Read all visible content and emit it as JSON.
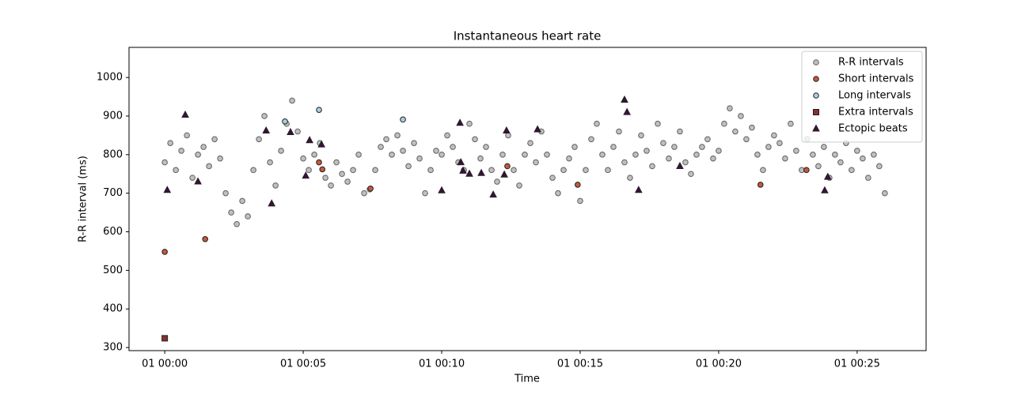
{
  "chart_data": {
    "type": "scatter",
    "title": "Instantaneous heart rate",
    "x_label": "Time",
    "y_label": "R-R interval (ms)",
    "xlim": [
      -1.29,
      27.49
    ],
    "ylim": [
      292,
      1078
    ],
    "xticks": [
      {
        "value": 0,
        "label": "01 00:00"
      },
      {
        "value": 5,
        "label": "01 00:05"
      },
      {
        "value": 10,
        "label": "01 00:10"
      },
      {
        "value": 15,
        "label": "01 00:15"
      },
      {
        "value": 20,
        "label": "01 00:20"
      },
      {
        "value": 25,
        "label": "01 00:25"
      }
    ],
    "yticks": [
      300,
      400,
      500,
      600,
      700,
      800,
      900,
      1000
    ],
    "legend": "upper right",
    "series": [
      {
        "name": "R-R intervals",
        "color": "#c0c0c0",
        "edge": "#606060",
        "marker": "circle",
        "x": [
          0,
          0.2,
          0.4,
          0.6,
          0.8,
          1.0,
          1.2,
          1.4,
          1.6,
          1.8,
          2.0,
          2.2,
          2.4,
          2.6,
          2.8,
          3.0,
          3.2,
          3.4,
          3.6,
          3.8,
          4.0,
          4.2,
          4.4,
          4.6,
          4.8,
          5.0,
          5.2,
          5.4,
          5.6,
          5.8,
          6.0,
          6.2,
          6.4,
          6.6,
          6.8,
          7.0,
          7.2,
          7.4,
          7.6,
          7.8,
          8.0,
          8.2,
          8.4,
          8.6,
          8.8,
          9.0,
          9.2,
          9.4,
          9.6,
          9.8,
          10.0,
          10.2,
          10.4,
          10.6,
          10.8,
          11.0,
          11.2,
          11.4,
          11.6,
          11.8,
          12.0,
          12.2,
          12.4,
          12.6,
          12.8,
          13.0,
          13.2,
          13.4,
          13.6,
          13.8,
          14.0,
          14.2,
          14.4,
          14.6,
          14.8,
          15.0,
          15.2,
          15.4,
          15.6,
          15.8,
          16.0,
          16.2,
          16.4,
          16.6,
          16.8,
          17.0,
          17.2,
          17.4,
          17.6,
          17.8,
          18.0,
          18.2,
          18.4,
          18.6,
          18.8,
          19.0,
          19.2,
          19.4,
          19.6,
          19.8,
          20.0,
          20.2,
          20.4,
          20.6,
          20.8,
          21.0,
          21.2,
          21.4,
          21.6,
          21.8,
          22.0,
          22.2,
          22.4,
          22.6,
          22.8,
          23.0,
          23.2,
          23.4,
          23.6,
          23.8,
          24.0,
          24.2,
          24.4,
          24.6,
          24.8,
          25.0,
          25.2,
          25.4,
          25.6,
          25.8,
          26.0
        ],
        "values": [
          780,
          830,
          760,
          810,
          850,
          740,
          800,
          820,
          770,
          840,
          790,
          700,
          650,
          620,
          680,
          640,
          760,
          840,
          900,
          780,
          720,
          810,
          880,
          940,
          860,
          790,
          760,
          800,
          830,
          740,
          720,
          780,
          750,
          730,
          760,
          800,
          700,
          710,
          760,
          820,
          840,
          800,
          850,
          810,
          770,
          830,
          790,
          700,
          760,
          810,
          800,
          850,
          820,
          780,
          760,
          880,
          840,
          790,
          820,
          760,
          730,
          800,
          850,
          760,
          720,
          800,
          830,
          780,
          860,
          800,
          740,
          700,
          760,
          790,
          820,
          680,
          760,
          840,
          880,
          800,
          760,
          820,
          860,
          780,
          740,
          800,
          850,
          810,
          770,
          880,
          830,
          790,
          820,
          860,
          780,
          750,
          800,
          820,
          840,
          790,
          810,
          880,
          920,
          860,
          900,
          840,
          870,
          800,
          760,
          820,
          850,
          830,
          790,
          880,
          810,
          760,
          840,
          800,
          770,
          820,
          740,
          800,
          780,
          830,
          760,
          810,
          790,
          740,
          800,
          770,
          700
        ]
      },
      {
        "name": "Short intervals",
        "color": "#c4593e",
        "edge": "#202020",
        "marker": "circle",
        "x": [
          0,
          1.46,
          5.57,
          5.69,
          7.43,
          12.37,
          14.91,
          21.51,
          23.17
        ],
        "values": [
          548,
          581,
          780,
          762,
          712,
          770,
          722,
          722,
          760
        ]
      },
      {
        "name": "Long intervals",
        "color": "#a9cfe0",
        "edge": "#202020",
        "marker": "circle",
        "x": [
          4.34,
          5.57,
          8.6
        ],
        "values": [
          886,
          916,
          891
        ]
      },
      {
        "name": "Extra intervals",
        "color": "#8b2e2e",
        "edge": "#202020",
        "marker": "square",
        "x": [
          0
        ],
        "values": [
          324
        ]
      },
      {
        "name": "Ectopic beats",
        "color": "#3d0f3d",
        "edge": "#202020",
        "marker": "triangle",
        "x": [
          0.09,
          0.74,
          1.2,
          3.66,
          3.86,
          4.54,
          5.09,
          5.23,
          5.66,
          10.0,
          10.66,
          10.69,
          10.77,
          11.0,
          11.43,
          11.86,
          12.26,
          12.34,
          13.46,
          16.6,
          16.69,
          17.11,
          18.6,
          23.83,
          23.94
        ],
        "values": [
          708,
          903,
          730,
          862,
          673,
          858,
          745,
          837,
          826,
          707,
          882,
          780,
          758,
          750,
          752,
          696,
          748,
          862,
          865,
          942,
          910,
          708,
          770,
          707,
          742
        ]
      }
    ]
  }
}
